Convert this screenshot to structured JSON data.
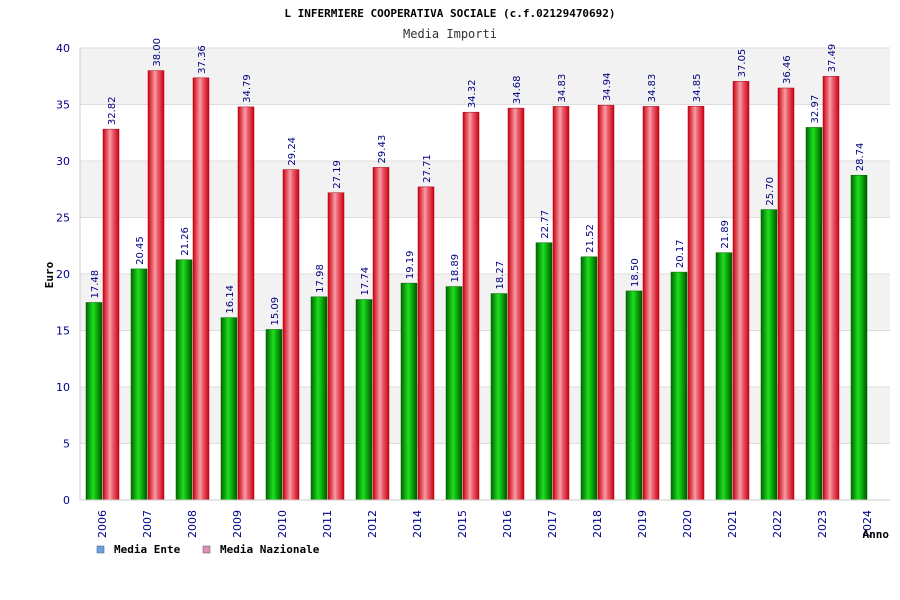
{
  "chart_data": {
    "type": "bar",
    "title": "L INFERMIERE COOPERATIVA SOCIALE (c.f.02129470692)",
    "subtitle": "Media Importi",
    "xlabel": "Anno",
    "ylabel": "Euro",
    "ylim": [
      0,
      40
    ],
    "yticks": [
      0,
      5,
      10,
      15,
      20,
      25,
      30,
      35,
      40
    ],
    "grid": true,
    "legend_position": "bottom-left",
    "categories": [
      "2006",
      "2007",
      "2008",
      "2009",
      "2010",
      "2011",
      "2012",
      "2014",
      "2015",
      "2016",
      "2017",
      "2018",
      "2019",
      "2020",
      "2021",
      "2022",
      "2023",
      "2024"
    ],
    "series": [
      {
        "name": "Media Ente",
        "color": "#00aa00",
        "legend_color": "#6aa0e8",
        "values": [
          17.48,
          20.45,
          21.26,
          16.14,
          15.09,
          17.98,
          17.74,
          19.19,
          18.89,
          18.27,
          22.77,
          21.52,
          18.5,
          20.17,
          21.89,
          25.7,
          32.97,
          28.74
        ]
      },
      {
        "name": "Media Nazionale",
        "color": "#ee1c2c",
        "legend_color": "#e090b8",
        "values": [
          32.82,
          38.0,
          37.36,
          34.79,
          29.24,
          27.19,
          29.43,
          27.71,
          34.32,
          34.68,
          34.83,
          34.94,
          34.83,
          34.85,
          37.05,
          36.46,
          37.49,
          null
        ]
      }
    ]
  }
}
